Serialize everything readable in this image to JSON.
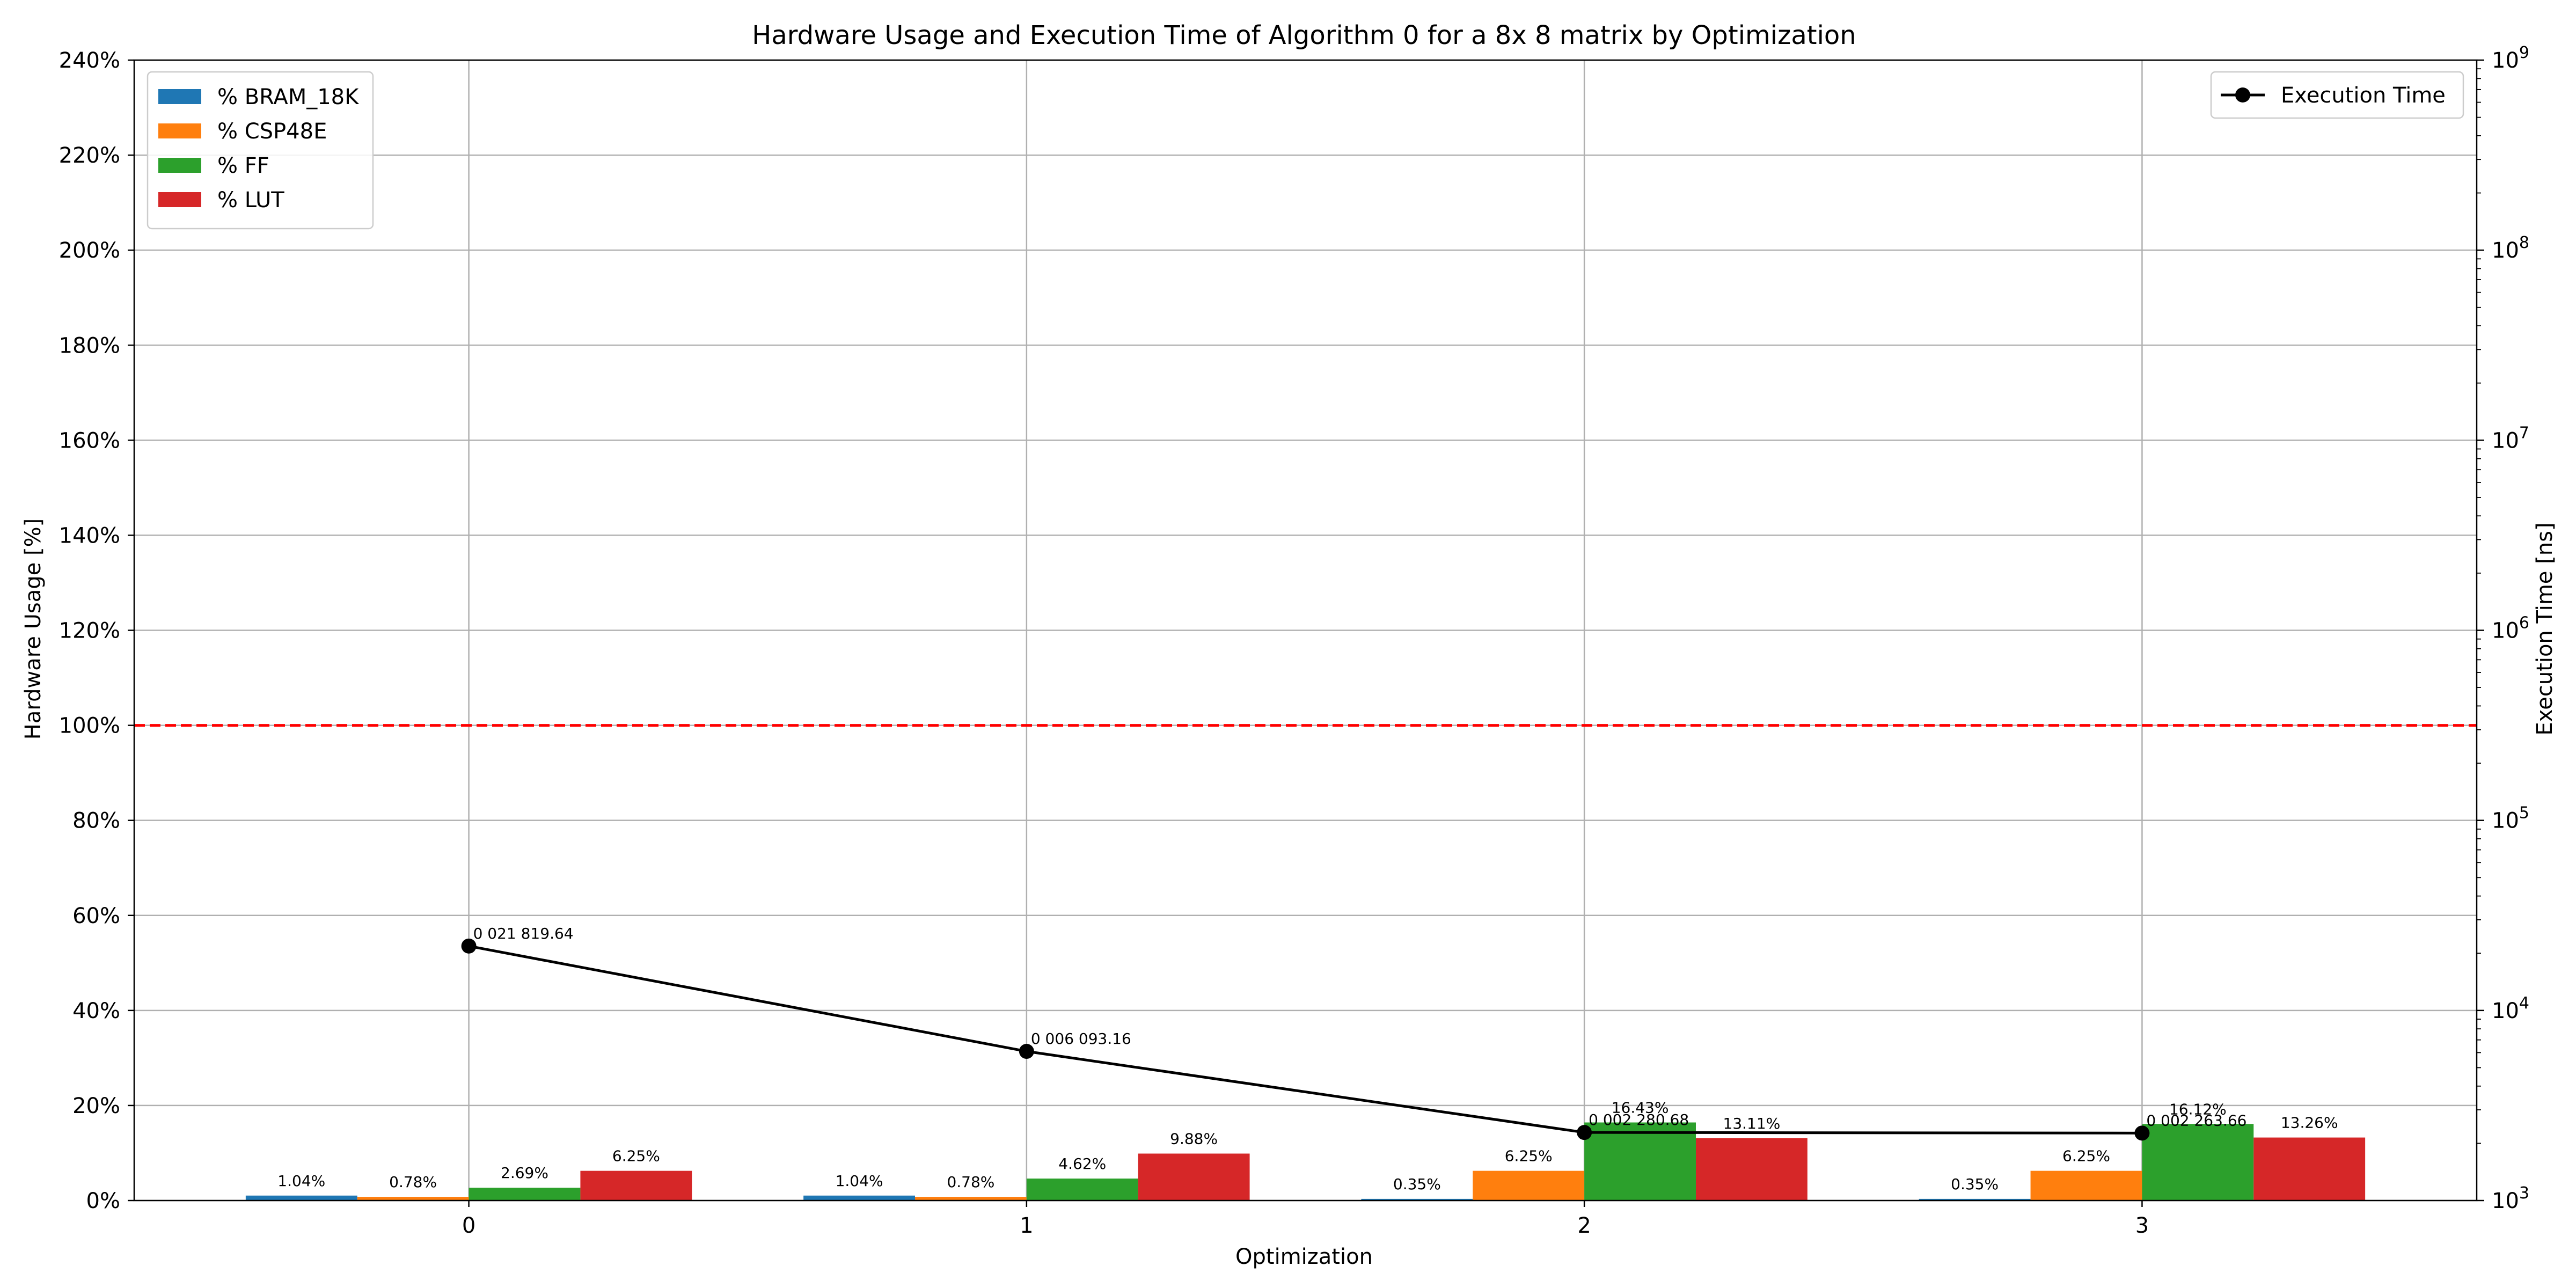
{
  "chart_data": {
    "type": "bar",
    "title": "Hardware Usage and Execution Time of Algorithm 0 for a   8x  8 matrix by Optimization",
    "xlabel": "Optimization",
    "ylabel": "Hardware Usage [%]",
    "y2label": "Execution Time [ns]",
    "categories": [
      "0",
      "1",
      "2",
      "3"
    ],
    "ylim": [
      0,
      240
    ],
    "yticks": [
      "0%",
      "20%",
      "40%",
      "60%",
      "80%",
      "100%",
      "120%",
      "140%",
      "160%",
      "180%",
      "200%",
      "220%",
      "240%"
    ],
    "y2lim": [
      1000,
      1000000000
    ],
    "y2scale": "log",
    "y2ticks": [
      {
        "base": "10",
        "exp": "3"
      },
      {
        "base": "10",
        "exp": "4"
      },
      {
        "base": "10",
        "exp": "5"
      },
      {
        "base": "10",
        "exp": "6"
      },
      {
        "base": "10",
        "exp": "7"
      },
      {
        "base": "10",
        "exp": "8"
      },
      {
        "base": "10",
        "exp": "9"
      }
    ],
    "grid": true,
    "reference_line": {
      "value": 100,
      "color": "#ff0000",
      "style": "dashed"
    },
    "series": [
      {
        "name": "% BRAM_18K",
        "color": "#1f77b4",
        "values": [
          1.04,
          1.04,
          0.35,
          0.35
        ],
        "labels": [
          "1.04%",
          "1.04%",
          "0.35%",
          "0.35%"
        ]
      },
      {
        "name": "% CSP48E",
        "color": "#ff7f0e",
        "values": [
          0.78,
          0.78,
          6.25,
          6.25
        ],
        "labels": [
          "0.78%",
          "0.78%",
          "6.25%",
          "6.25%"
        ]
      },
      {
        "name": "% FF",
        "color": "#2ca02c",
        "values": [
          2.69,
          4.62,
          16.43,
          16.12
        ],
        "labels": [
          "2.69%",
          "4.62%",
          "16.43%",
          "16.12%"
        ]
      },
      {
        "name": "% LUT",
        "color": "#d62728",
        "values": [
          6.25,
          9.88,
          13.11,
          13.26
        ],
        "labels": [
          "6.25%",
          "9.88%",
          "13.11%",
          "13.26%"
        ]
      }
    ],
    "line_series": {
      "name": "Execution Time",
      "color": "#000000",
      "axis": "right",
      "values": [
        21819.64,
        6093.16,
        2280.68,
        2263.66
      ],
      "labels": [
        "0 021 819.64",
        "0 006 093.16",
        "0 002 280.68",
        "0 002 263.66"
      ]
    },
    "legend_left": "top-left",
    "legend_right": "top-right"
  }
}
